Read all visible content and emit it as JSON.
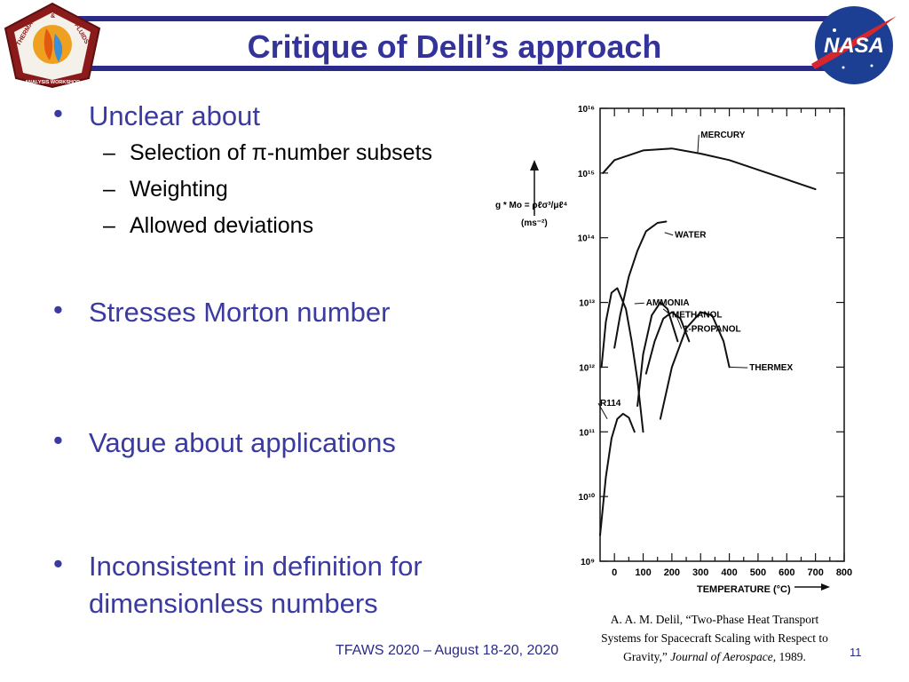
{
  "title": "Critique of Delil’s approach",
  "logos": {
    "left_text": [
      "THERMAL",
      "&",
      "FLUIDS",
      "ANALYSIS WORKSHOP"
    ],
    "right_text": "NASA"
  },
  "bullets": [
    {
      "text": "Unclear about",
      "subs": [
        "Selection of π-number subsets",
        "Weighting",
        "Allowed deviations"
      ]
    },
    {
      "text": "Stresses Morton number",
      "subs": []
    },
    {
      "text": "Vague about applications",
      "subs": []
    },
    {
      "text": "Inconsistent in definition for dimensionless numbers",
      "subs": []
    }
  ],
  "bullet_lines": {
    "b1": "Unclear about",
    "s1": "Selection of π-number subsets",
    "s2": "Weighting",
    "s3": "Allowed deviations",
    "b2": "Stresses Morton number",
    "b3": "Vague about applications",
    "b4a": "Inconsistent in definition for",
    "b4b": "dimensionless numbers"
  },
  "chart_data": {
    "type": "line",
    "xlabel": "TEMPERATURE (°C)",
    "ylabel": "g * Mo = ρℓσ³/μℓ⁴",
    "ylabel_units": "(ms⁻²)",
    "xlim": [
      -50,
      800
    ],
    "ylim_log10": [
      9,
      16
    ],
    "x_ticks": [
      "0",
      "100",
      "200",
      "300",
      "400",
      "500",
      "600",
      "700",
      "800"
    ],
    "y_ticks": [
      "10⁹",
      "10¹⁰",
      "10¹¹",
      "10¹²",
      "10¹³",
      "10¹⁴",
      "10¹⁵",
      "10¹⁶"
    ],
    "log_scale_y": true,
    "grid": false,
    "series": [
      {
        "name": "MERCURY",
        "x": [
          -40,
          0,
          100,
          200,
          300,
          400,
          500,
          600,
          700
        ],
        "log10_y": [
          15.0,
          15.2,
          15.35,
          15.38,
          15.3,
          15.2,
          15.05,
          14.9,
          14.75
        ]
      },
      {
        "name": "WATER",
        "x": [
          0,
          20,
          50,
          80,
          110,
          150,
          180
        ],
        "log10_y": [
          12.3,
          12.8,
          13.4,
          13.8,
          14.1,
          14.23,
          14.25
        ]
      },
      {
        "name": "AMMONIA",
        "x": [
          -45,
          -30,
          -10,
          10,
          40,
          60,
          80,
          100
        ],
        "log10_y": [
          12.0,
          12.7,
          13.15,
          13.22,
          12.9,
          12.4,
          11.8,
          11.0
        ]
      },
      {
        "name": "METHANOL",
        "x": [
          80,
          100,
          130,
          160,
          185,
          220
        ],
        "log10_y": [
          11.4,
          12.2,
          12.8,
          13.0,
          12.9,
          12.4
        ]
      },
      {
        "name": "1-PROPANOL",
        "x": [
          110,
          140,
          170,
          200,
          230,
          260
        ],
        "log10_y": [
          11.9,
          12.4,
          12.75,
          12.85,
          12.75,
          12.4
        ]
      },
      {
        "name": "THERMEX",
        "x": [
          160,
          200,
          250,
          300,
          340,
          380,
          400
        ],
        "log10_y": [
          11.2,
          12.0,
          12.6,
          12.85,
          12.8,
          12.4,
          12.0
        ]
      },
      {
        "name": "R114",
        "x": [
          -50,
          -30,
          -10,
          10,
          30,
          50,
          70
        ],
        "log10_y": [
          9.4,
          10.3,
          10.9,
          11.2,
          11.28,
          11.22,
          11.0
        ]
      }
    ]
  },
  "citation": {
    "line1": "A. A. M. Delil, “Two-Phase Heat Transport",
    "line2": "Systems for Spacecraft Scaling with Respect to",
    "line3_pre": "Gravity,” ",
    "line3_journal": "Journal of Aerospace",
    "line3_post": ", 1989."
  },
  "footer": "TFAWS 2020 – August 18-20, 2020",
  "page_number": "11",
  "colors": {
    "title": "#33339a",
    "band": "#2a2a88",
    "bullet": "#3a3aa0"
  }
}
